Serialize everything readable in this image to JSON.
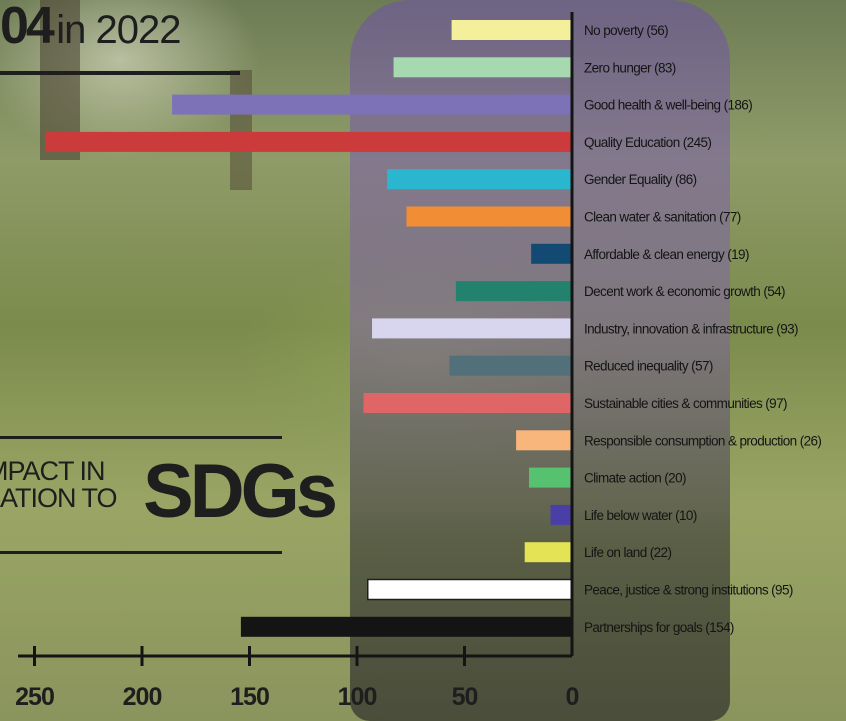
{
  "header": {
    "title_number": "04",
    "title_year": "in 2022",
    "subtitle_line1": "MPACT IN",
    "subtitle_line2": "LATION TO",
    "subtitle_big": "SDGs"
  },
  "chart_data": {
    "type": "bar",
    "orientation": "horizontal",
    "categories": [
      "No poverty (56)",
      "Zero hunger (83)",
      "Good health & well-being (186)",
      "Quality Education (245)",
      "Gender Equality (86)",
      "Clean water & sanitation (77)",
      "Affordable & clean energy (19)",
      "Decent work & economic growth (54)",
      "Industry, innovation & infrastructure (93)",
      "Reduced inequality (57)",
      "Sustainable cities & communities (97)",
      "Responsible consumption & production (26)",
      "Climate action (20)",
      "Life below water (10)",
      "Life on land (22)",
      "Peace, justice & strong institutions (95)",
      "Partnerships for goals (154)"
    ],
    "values": [
      56,
      83,
      186,
      245,
      86,
      77,
      19,
      54,
      93,
      57,
      97,
      26,
      20,
      10,
      22,
      95,
      154
    ],
    "colors": [
      "#f3ef9a",
      "#a6d9b0",
      "#7d72b8",
      "#cb3b3b",
      "#2bb6cf",
      "#f18d34",
      "#124a73",
      "#23826d",
      "#d8d6ee",
      "#52707a",
      "#df6566",
      "#f9b67c",
      "#56c16f",
      "#4a3fa6",
      "#e4e356",
      "#ffffff",
      "#141414"
    ],
    "xlim": [
      0,
      250
    ],
    "x_ticks": [
      250,
      200,
      150,
      100,
      50,
      0
    ],
    "x_direction": "reversed"
  }
}
